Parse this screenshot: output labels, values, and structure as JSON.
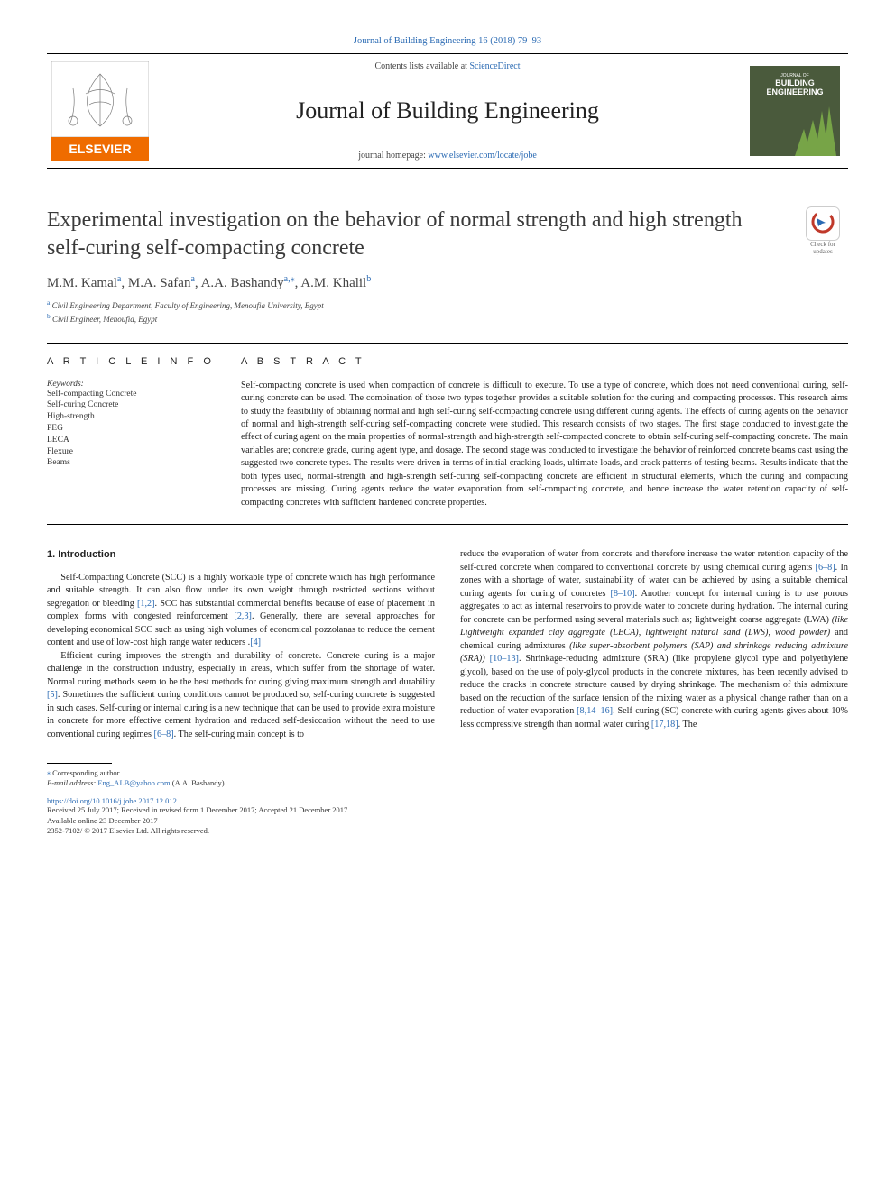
{
  "header": {
    "citation": "Journal of Building Engineering 16 (2018) 79–93",
    "contents_prefix": "Contents lists available at ",
    "contents_link": "ScienceDirect",
    "journal": "Journal of Building Engineering",
    "homepage_prefix": "journal homepage: ",
    "homepage_url": "www.elsevier.com/locate/jobe",
    "elsevier_orange": "#ef6c00",
    "elsevier_text": "ELSEVIER",
    "cover_bg": "#4a5a3c",
    "cover_line1": "JOURNAL OF",
    "cover_line2": "BUILDING",
    "cover_line3": "ENGINEERING",
    "cover_accent": "#7fb24a"
  },
  "check": {
    "label1": "Check for",
    "label2": "updates",
    "ring_color": "#c0392b",
    "mark_color": "#2a6ab3"
  },
  "article": {
    "title": "Experimental investigation on the behavior of normal strength and high strength self-curing self-compacting concrete",
    "authors_html": [
      {
        "name": "M.M. Kamal",
        "sup": "a"
      },
      {
        "name": "M.A. Safan",
        "sup": "a"
      },
      {
        "name": "A.A. Bashandy",
        "sup": "a,",
        "extra": "⁎"
      },
      {
        "name": "A.M. Khalil",
        "sup": "b"
      }
    ],
    "affiliations": [
      {
        "sup": "a",
        "text": "Civil Engineering Department, Faculty of Engineering, Menoufia University, Egypt"
      },
      {
        "sup": "b",
        "text": "Civil Engineer, Menoufia, Egypt"
      }
    ]
  },
  "info": {
    "head": "A R T I C L E  I N F O",
    "kw_label": "Keywords:",
    "keywords": [
      "Self-compacting Concrete",
      "Self-curing Concrete",
      "High-strength",
      "PEG",
      "LECA",
      "Flexure",
      "Beams"
    ]
  },
  "abstract": {
    "head": "A B S T R A C T",
    "text": "Self-compacting concrete is used when compaction of concrete is difficult to execute. To use a type of concrete, which does not need conventional curing, self-curing concrete can be used. The combination of those two types together provides a suitable solution for the curing and compacting processes. This research aims to study the feasibility of obtaining normal and high self-curing self-compacting concrete using different curing agents. The effects of curing agents on the behavior of normal and high-strength self-curing self-compacting concrete were studied. This research consists of two stages. The first stage conducted to investigate the effect of curing agent on the main properties of normal-strength and high-strength self-compacted concrete to obtain self-curing self-compacting concrete. The main variables are; concrete grade, curing agent type, and dosage. The second stage was conducted to investigate the behavior of reinforced concrete beams cast using the suggested two concrete types. The results were driven in terms of initial cracking loads, ultimate loads, and crack patterns of testing beams. Results indicate that the both types used, normal-strength and high-strength self-curing self-compacting concrete are efficient in structural elements, which the curing and compacting processes are missing. Curing agents reduce the water evaporation from self-compacting concrete, and hence increase the water retention capacity of self-compacting concretes with sufficient hardened concrete properties."
  },
  "sections": {
    "intro_head": "1.  Introduction"
  },
  "body": {
    "left": [
      {
        "t": "Self-Compacting Concrete (SCC) is a highly workable type of concrete which has high performance and suitable strength. It can also flow under its own weight through restricted sections without segregation or bleeding ",
        "c": "[1,2]",
        "t2": ". SCC has substantial commercial benefits because of ease of placement in complex forms with congested reinforcement ",
        "c2": "[2,3]",
        "t3": ". Generally, there are several approaches for developing economical SCC such as using high volumes of economical pozzolanas to reduce the cement content and use of low-cost high range water reducers ",
        "c3": "[4]",
        "t4": "."
      },
      {
        "t": "Efficient curing improves the strength and durability of concrete. Concrete curing is a major challenge in the construction industry, especially in areas, which suffer from the shortage of water. Normal curing methods seem to be the best methods for curing giving maximum strength and durability ",
        "c": "[5]",
        "t2": ". Sometimes the sufficient curing conditions cannot be produced so, self-curing concrete is suggested in such cases. Self-curing or internal curing is a new technique that can be used to provide extra moisture in concrete for more effective cement hydration and reduced self-desiccation without the need to use conventional curing regimes ",
        "c2": "[6–8]",
        "t3": ". The self-curing main concept is to"
      }
    ],
    "right": [
      {
        "t": "reduce the evaporation of water from concrete and therefore increase the water retention capacity of the self-cured concrete when compared to conventional concrete by using chemical curing agents ",
        "c": "[6–8]",
        "t2": ". In zones with a shortage of water, sustainability of water can be achieved by using a suitable chemical curing agents for curing of concretes ",
        "c2": "[8–10]",
        "t3": ". Another concept for internal curing is to use porous aggregates to act as internal reservoirs to provide water to concrete during hydration. The internal curing for concrete can be performed using several materials such as; lightweight coarse aggregate (LWA) ",
        "i": "(like Lightweight expanded clay aggregate (LECA), lightweight natural sand (LWS), wood powder)",
        "t4": " and chemical curing admixtures ",
        "i2": "(like super-absorbent polymers (SAP) and shrinkage reducing admixture (SRA))",
        "t5": " ",
        "c3": "[10–13]",
        "t6": ". Shrinkage-reducing admixture (SRA) (like propylene glycol type and polyethylene glycol), based on the use of poly-glycol products in the concrete mixtures, has been recently advised to reduce the cracks in concrete structure caused by drying shrinkage. The mechanism of this admixture based on the reduction of the surface tension of the mixing water as a physical change rather than on a reduction of water evaporation ",
        "c4": "[8,14–16]",
        "t7": ". Self-curing (SC) concrete with curing agents gives about 10% less compressive strength than normal water curing ",
        "c5": "[17,18]",
        "t8": ". The"
      }
    ]
  },
  "footer": {
    "corresp_label": "Corresponding author.",
    "email_label": "E-mail address:",
    "email": "Eng_ALB@yahoo.com",
    "email_person": " (A.A. Bashandy).",
    "doi": "https://doi.org/10.1016/j.jobe.2017.12.012",
    "received": "Received 25 July 2017; Received in revised form 1 December 2017; Accepted 21 December 2017",
    "online": "Available online 23 December 2017",
    "issn": "2352-7102/ © 2017 Elsevier Ltd. All rights reserved."
  },
  "colors": {
    "link": "#2a6ab3",
    "text": "#222222"
  }
}
